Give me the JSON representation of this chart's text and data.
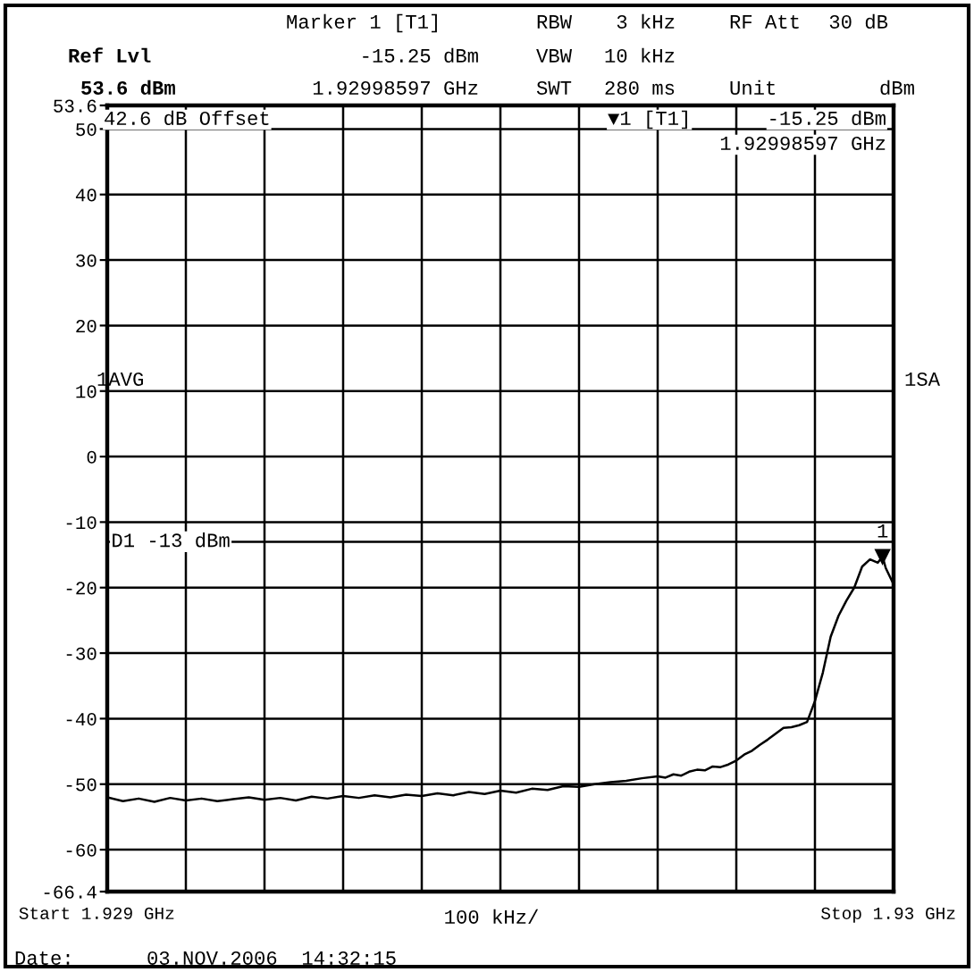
{
  "chart_data": {
    "type": "line",
    "ylim": [
      -66.4,
      53.6
    ],
    "yticks": [
      53.6,
      50,
      40,
      30,
      20,
      10,
      0,
      -10,
      -20,
      -30,
      -40,
      -50,
      -60,
      -66.4
    ],
    "xlim": [
      1.929,
      1.93
    ],
    "xticks": [
      1.929,
      {
        "value": 1.9291,
        "label": null
      },
      {
        "value": 1.9292,
        "label": null
      },
      {
        "value": 1.9293,
        "label": null
      },
      {
        "value": 1.9294,
        "label": null
      },
      {
        "value": 1.9295,
        "label": null
      },
      {
        "value": 1.9296,
        "label": null
      },
      {
        "value": 1.9297,
        "label": null
      },
      {
        "value": 1.9298,
        "label": null
      },
      {
        "value": 1.9299,
        "label": null
      },
      1.93
    ],
    "grid": true,
    "marker": "none",
    "line_style": "solid",
    "series": [
      {
        "color": "#000000",
        "x": [
          1.929,
          1.92902,
          1.92904,
          1.92906,
          1.92908,
          1.9291,
          1.92912,
          1.92914,
          1.92916,
          1.92918,
          1.9292,
          1.92922,
          1.92924,
          1.92926,
          1.92928,
          1.9293,
          1.92932,
          1.92934,
          1.92936,
          1.92938,
          1.9294,
          1.92942,
          1.92944,
          1.92946,
          1.92948,
          1.9295,
          1.92952,
          1.92954,
          1.92956,
          1.92958,
          1.9296,
          1.92962,
          1.92964,
          1.92966,
          1.92968,
          1.9297,
          1.92971,
          1.92972,
          1.92973,
          1.92974,
          1.92975,
          1.92976,
          1.92977,
          1.92978,
          1.92979,
          1.9298,
          1.92981,
          1.92982,
          1.92983,
          1.92984,
          1.92985,
          1.92986,
          1.92987,
          1.92988,
          1.92989,
          1.9299,
          1.92991,
          1.92992,
          1.92993,
          1.92994,
          1.92995,
          1.92996,
          1.92997,
          1.92998,
          1.92998597,
          1.92999,
          1.93
        ],
        "values": [
          -52.0,
          -52.6,
          -52.2,
          -52.7,
          -52.1,
          -52.5,
          -52.2,
          -52.6,
          -52.3,
          -52.0,
          -52.4,
          -52.1,
          -52.5,
          -51.9,
          -52.2,
          -51.8,
          -52.1,
          -51.7,
          -52.0,
          -51.6,
          -51.8,
          -51.4,
          -51.7,
          -51.2,
          -51.5,
          -51.0,
          -51.3,
          -50.7,
          -50.9,
          -50.3,
          -50.4,
          -50.0,
          -49.7,
          -49.5,
          -49.1,
          -48.8,
          -49.0,
          -48.5,
          -48.7,
          -48.1,
          -47.8,
          -47.9,
          -47.3,
          -47.4,
          -47.0,
          -46.4,
          -45.5,
          -44.9,
          -44.0,
          -43.2,
          -42.3,
          -41.4,
          -41.3,
          -41.0,
          -40.5,
          -37.3,
          -33.0,
          -27.5,
          -24.3,
          -22.0,
          -20.0,
          -16.8,
          -15.7,
          -16.2,
          -15.25,
          -17.0,
          -19.5
        ]
      }
    ],
    "ref_lines": [
      {
        "axis": "y",
        "value": -13,
        "label": "D1 -13 dBm"
      }
    ],
    "annotations": [
      "Marker 1 [T1]",
      "RBW",
      "3 kHz",
      "RF Att",
      "30 dB",
      "Ref Lvl",
      "-15.25 dBm",
      "VBW",
      "10 kHz",
      "53.6 dBm",
      "1.92998597 GHz",
      "SWT",
      "280 ms",
      "Unit",
      "dBm",
      "42.6 dB Offset",
      "▼1 [T1]",
      "-15.25 dBm",
      "1.92998597 GHz",
      "1AVG",
      "1SA",
      "100 kHz/",
      "Date:",
      "03.NOV.2006  14:32:15",
      "Start",
      "GHz",
      "Stop",
      "GHz",
      {
        "text": "1",
        "x": 1.92998597,
        "y": -15.25
      }
    ]
  }
}
